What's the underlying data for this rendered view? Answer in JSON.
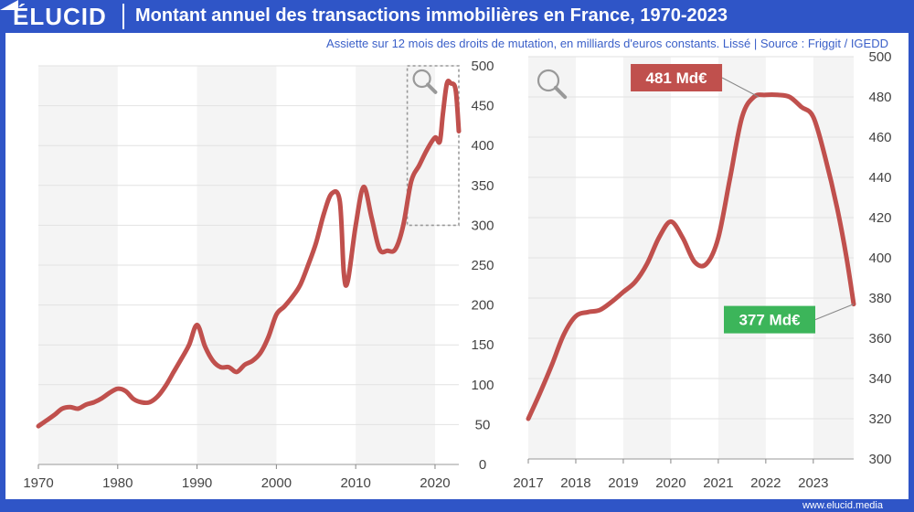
{
  "header": {
    "logo": "ÉLUCID",
    "title": "Montant annuel des transactions immobilières en France, 1970-2023",
    "subtitle": "Assiette sur 12 mois des droits de mutation, en milliards d'euros constants. Lissé  |  Source : Friggit / IGEDD"
  },
  "footer": {
    "site": "www.elucid.media"
  },
  "colors": {
    "brand": "#2f55c7",
    "line": "#c0504d",
    "label_max": "#c0504d",
    "label_min": "#3cb55a",
    "band": "#f4f4f4"
  },
  "icons": [
    "magnifier-icon",
    "zoom-magnifier-icon"
  ],
  "chart_data": [
    {
      "type": "line",
      "title": "Montant annuel des transactions immobilières en France, 1970-2023",
      "xlim": [
        1970,
        2023
      ],
      "ylim": [
        0,
        500
      ],
      "x_ticks": [
        1970,
        1980,
        1990,
        2000,
        2010,
        2020
      ],
      "y_ticks": [
        0,
        50,
        100,
        150,
        200,
        250,
        300,
        350,
        400,
        450,
        500
      ],
      "y_axis_side": "right",
      "zoom_box": {
        "x": [
          2016.5,
          2023
        ],
        "y": [
          300,
          500
        ]
      },
      "series": [
        {
          "x": [
            1970,
            1971,
            1972,
            1973,
            1974,
            1975,
            1976,
            1977,
            1978,
            1979,
            1980,
            1981,
            1982,
            1983,
            1984,
            1985,
            1986,
            1987,
            1988,
            1989,
            1990,
            1991,
            1992,
            1993,
            1994,
            1995,
            1996,
            1997,
            1998,
            1999,
            2000,
            2001,
            2002,
            2003,
            2004,
            2005,
            2006,
            2007,
            2008,
            2008.5,
            2009,
            2010,
            2011,
            2012,
            2013,
            2014,
            2015,
            2016,
            2017,
            2018,
            2019,
            2020,
            2020.6,
            2021,
            2021.5,
            2022,
            2022.6,
            2023
          ],
          "values": [
            48,
            55,
            62,
            70,
            72,
            70,
            75,
            78,
            83,
            90,
            95,
            92,
            82,
            78,
            78,
            85,
            98,
            115,
            132,
            150,
            175,
            148,
            130,
            122,
            122,
            116,
            125,
            130,
            140,
            160,
            188,
            198,
            210,
            225,
            250,
            278,
            315,
            340,
            330,
            240,
            230,
            300,
            348,
            310,
            270,
            268,
            270,
            300,
            355,
            375,
            395,
            410,
            405,
            440,
            478,
            478,
            470,
            418
          ]
        }
      ]
    },
    {
      "type": "line",
      "xlim": [
        2017,
        2023.85
      ],
      "ylim": [
        300,
        500
      ],
      "x_ticks": [
        2017,
        2018,
        2019,
        2020,
        2021,
        2022,
        2023
      ],
      "y_ticks": [
        300,
        320,
        340,
        360,
        380,
        400,
        420,
        440,
        460,
        480,
        500
      ],
      "y_axis_side": "right",
      "annotations": [
        {
          "text": "481 Md€",
          "x": 2021.85,
          "y": 480,
          "kind": "max"
        },
        {
          "text": "377 Md€",
          "x": 2023.85,
          "y": 377,
          "kind": "min"
        }
      ],
      "series": [
        {
          "x": [
            2017,
            2017.25,
            2017.5,
            2017.75,
            2018,
            2018.25,
            2018.5,
            2018.75,
            2019,
            2019.25,
            2019.5,
            2019.75,
            2020,
            2020.25,
            2020.5,
            2020.75,
            2021,
            2021.25,
            2021.5,
            2021.75,
            2022,
            2022.25,
            2022.5,
            2022.75,
            2023,
            2023.25,
            2023.5,
            2023.7,
            2023.85
          ],
          "values": [
            320,
            333,
            347,
            362,
            371,
            373,
            374,
            378,
            383,
            388,
            397,
            410,
            418,
            410,
            398,
            397,
            410,
            440,
            470,
            480,
            481,
            481,
            480,
            475,
            470,
            450,
            425,
            400,
            377
          ]
        }
      ]
    }
  ]
}
